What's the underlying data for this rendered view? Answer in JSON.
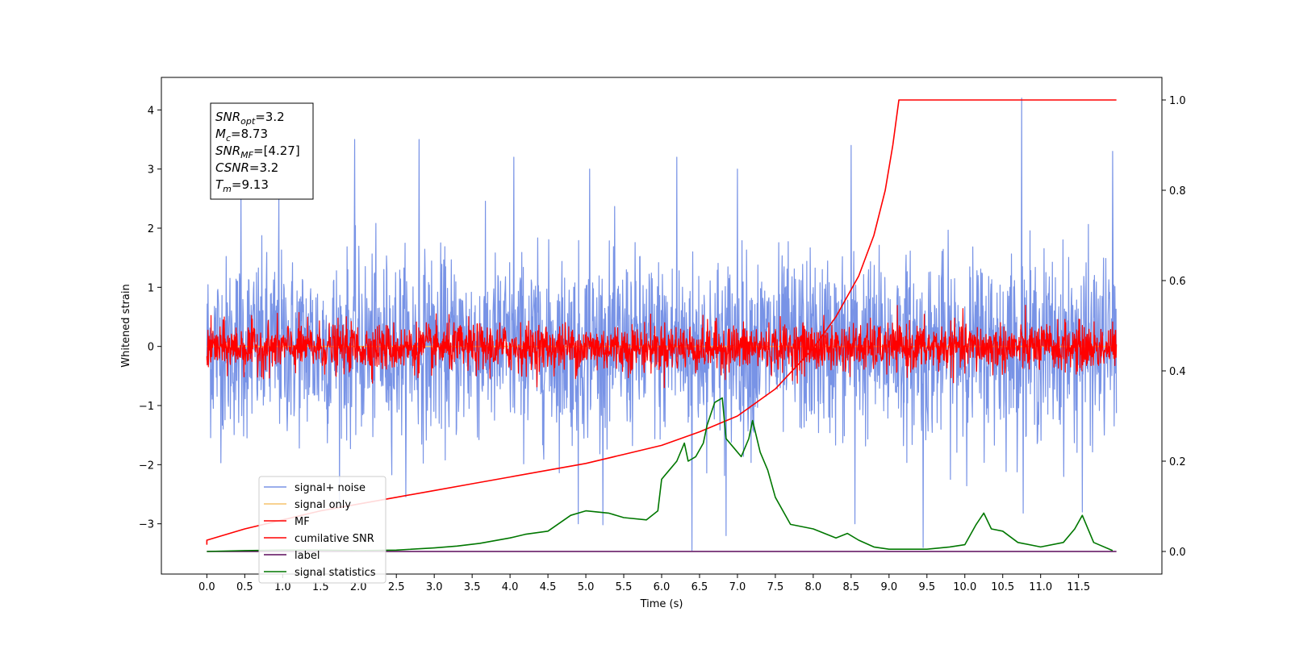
{
  "chart_data": {
    "type": "line",
    "xlabel": "Time (s)",
    "ylabel": "Whitened strain",
    "xlim": [
      -0.6,
      12.6
    ],
    "ylim": [
      -3.85,
      4.55
    ],
    "y2lim": [
      -0.05,
      1.05
    ],
    "x_ticks": [
      "0.0",
      "0.5",
      "1.0",
      "1.5",
      "2.0",
      "2.5",
      "3.0",
      "3.5",
      "4.0",
      "4.5",
      "5.0",
      "5.5",
      "6.0",
      "6.5",
      "7.0",
      "7.5",
      "8.0",
      "8.5",
      "9.0",
      "9.5",
      "10.0",
      "10.5",
      "11.0",
      "11.5"
    ],
    "y_ticks": [
      "−3",
      "−2",
      "−1",
      "0",
      "1",
      "2",
      "3",
      "4"
    ],
    "y2_ticks": [
      "0.0",
      "0.2",
      "0.4",
      "0.6",
      "0.8",
      "1.0"
    ],
    "legend": {
      "placement": "lower-left",
      "entries": [
        {
          "label": "signal+ noise",
          "color": "#7893e6"
        },
        {
          "label": "signal only",
          "color": "#f5c26b"
        },
        {
          "label": "MF",
          "color": "#ff0000"
        },
        {
          "label": "cumilative SNR",
          "color": "#ff0000"
        },
        {
          "label": "label",
          "color": "#5b0a5b"
        },
        {
          "label": "signal statistics",
          "color": "#007700"
        }
      ]
    },
    "annotation": {
      "lines": [
        {
          "main": "SNR",
          "sub": "opt",
          "rest": "=3.2"
        },
        {
          "main": "M",
          "sub": "c",
          "rest": "=8.73"
        },
        {
          "main": "SNR",
          "sub": "MF",
          "rest": "=[4.27]"
        },
        {
          "main": "CSNR",
          "sub": "",
          "rest": "=3.2"
        },
        {
          "main": "T",
          "sub": "m",
          "rest": "=9.13"
        }
      ]
    },
    "series": [
      {
        "name": "signal+ noise",
        "axis": "left",
        "color": "#7893e6",
        "x_range": [
          0.0,
          12.0
        ],
        "center": 0.0,
        "spread": 0.75,
        "spikes": [
          {
            "x": 0.45,
            "y": 2.6
          },
          {
            "x": 0.95,
            "y": 2.5
          },
          {
            "x": 1.95,
            "y": 3.5
          },
          {
            "x": 2.8,
            "y": 3.5
          },
          {
            "x": 4.05,
            "y": 3.2
          },
          {
            "x": 5.05,
            "y": 3.0
          },
          {
            "x": 6.2,
            "y": 3.2
          },
          {
            "x": 7.0,
            "y": 3.0
          },
          {
            "x": 8.5,
            "y": 3.4
          },
          {
            "x": 10.75,
            "y": 4.2
          },
          {
            "x": 11.95,
            "y": 3.3
          },
          {
            "x": 6.4,
            "y": -3.45
          },
          {
            "x": 9.45,
            "y": -3.4
          },
          {
            "x": 4.9,
            "y": -3.0
          },
          {
            "x": 6.85,
            "y": -3.2
          },
          {
            "x": 8.55,
            "y": -3.0
          },
          {
            "x": 11.55,
            "y": -2.8
          }
        ]
      },
      {
        "name": "signal only",
        "axis": "left",
        "color": "#f5c26b",
        "x": [
          0.0,
          12.0
        ],
        "y": [
          0.0,
          0.0
        ]
      },
      {
        "name": "MF",
        "axis": "left",
        "color": "#ff0000",
        "x_range": [
          0.0,
          12.0
        ],
        "center": -0.02,
        "spread": 0.2
      },
      {
        "name": "cumilative SNR",
        "axis": "right",
        "color": "#ff0000",
        "x": [
          0.0,
          0.0,
          0.5,
          1.0,
          1.5,
          2.0,
          2.5,
          3.0,
          3.5,
          4.0,
          4.5,
          5.0,
          5.5,
          6.0,
          6.5,
          7.0,
          7.5,
          8.0,
          8.3,
          8.6,
          8.8,
          8.95,
          9.05,
          9.13,
          12.0
        ],
        "y": [
          0.015,
          0.025,
          0.05,
          0.07,
          0.09,
          0.105,
          0.12,
          0.135,
          0.15,
          0.165,
          0.18,
          0.195,
          0.215,
          0.235,
          0.265,
          0.3,
          0.36,
          0.45,
          0.52,
          0.61,
          0.7,
          0.8,
          0.9,
          1.0,
          1.0
        ]
      },
      {
        "name": "label",
        "axis": "right",
        "color": "#5b0a5b",
        "x": [
          0.0,
          12.0
        ],
        "y": [
          0.0,
          0.0
        ]
      },
      {
        "name": "signal statistics",
        "axis": "right",
        "color": "#007700",
        "x": [
          0.0,
          0.5,
          1.0,
          1.5,
          2.0,
          2.5,
          3.0,
          3.3,
          3.6,
          4.0,
          4.2,
          4.5,
          4.8,
          5.0,
          5.3,
          5.5,
          5.8,
          5.95,
          6.0,
          6.1,
          6.2,
          6.3,
          6.35,
          6.45,
          6.55,
          6.6,
          6.7,
          6.8,
          6.85,
          6.95,
          7.05,
          7.15,
          7.2,
          7.3,
          7.4,
          7.5,
          7.7,
          8.0,
          8.3,
          8.45,
          8.6,
          8.8,
          9.0,
          9.5,
          9.8,
          10.0,
          10.15,
          10.25,
          10.35,
          10.5,
          10.7,
          11.0,
          11.3,
          11.45,
          11.55,
          11.7,
          11.95
        ],
        "y": [
          0.0,
          0.002,
          0.003,
          0.003,
          0.002,
          0.003,
          0.008,
          0.012,
          0.018,
          0.03,
          0.038,
          0.045,
          0.08,
          0.09,
          0.085,
          0.075,
          0.07,
          0.09,
          0.16,
          0.18,
          0.2,
          0.24,
          0.2,
          0.21,
          0.24,
          0.28,
          0.33,
          0.34,
          0.25,
          0.23,
          0.21,
          0.25,
          0.29,
          0.22,
          0.18,
          0.12,
          0.06,
          0.05,
          0.03,
          0.04,
          0.025,
          0.01,
          0.005,
          0.005,
          0.01,
          0.015,
          0.06,
          0.085,
          0.05,
          0.045,
          0.02,
          0.01,
          0.02,
          0.05,
          0.08,
          0.02,
          0.002
        ]
      }
    ]
  }
}
